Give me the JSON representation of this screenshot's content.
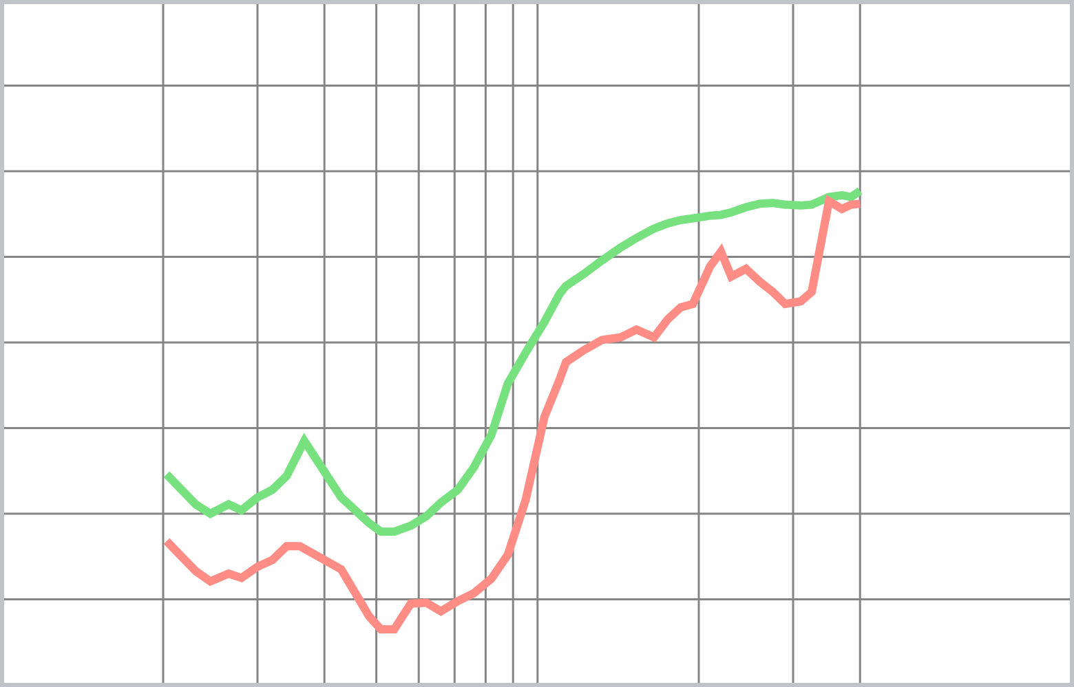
{
  "chart_data": {
    "type": "line",
    "title": "",
    "xlabel": "",
    "ylabel": "",
    "x_scale": "log",
    "grid": true,
    "legend": "none",
    "xlim": [
      1,
      40
    ],
    "ylim": [
      0,
      8
    ],
    "x_gridlines": [
      2,
      3,
      4,
      5,
      6,
      7,
      8,
      9,
      10,
      20,
      30,
      40
    ],
    "y_gridlines": [
      1,
      2,
      3,
      4,
      5,
      6,
      7,
      8
    ],
    "colors": {
      "border": "#c0c4c8",
      "grid": "#858585",
      "series_green": "#77e07f",
      "series_red": "#ff8d85"
    },
    "series": [
      {
        "color": "#77e07f",
        "points": [
          [
            2.03,
            2.46
          ],
          [
            2.3,
            2.11
          ],
          [
            2.45,
            2.0
          ],
          [
            2.65,
            2.11
          ],
          [
            2.8,
            2.04
          ],
          [
            3.0,
            2.19
          ],
          [
            3.2,
            2.28
          ],
          [
            3.4,
            2.44
          ],
          [
            3.67,
            2.85
          ],
          [
            4.3,
            2.19
          ],
          [
            4.85,
            1.89
          ],
          [
            5.1,
            1.79
          ],
          [
            5.4,
            1.79
          ],
          [
            5.8,
            1.86
          ],
          [
            6.2,
            1.97
          ],
          [
            6.6,
            2.13
          ],
          [
            7.1,
            2.28
          ],
          [
            7.6,
            2.54
          ],
          [
            8.2,
            2.92
          ],
          [
            8.8,
            3.52
          ],
          [
            9.5,
            3.88
          ],
          [
            10.3,
            4.24
          ],
          [
            11.0,
            4.57
          ],
          [
            11.3,
            4.66
          ],
          [
            12.2,
            4.8
          ],
          [
            13.2,
            4.96
          ],
          [
            14.3,
            5.11
          ],
          [
            15.3,
            5.22
          ],
          [
            16.5,
            5.33
          ],
          [
            17.5,
            5.39
          ],
          [
            18.5,
            5.43
          ],
          [
            19.5,
            5.45
          ],
          [
            21.0,
            5.48
          ],
          [
            22.0,
            5.49
          ],
          [
            23.0,
            5.52
          ],
          [
            24.5,
            5.58
          ],
          [
            26.0,
            5.62
          ],
          [
            27.5,
            5.63
          ],
          [
            29.0,
            5.61
          ],
          [
            31.0,
            5.6
          ],
          [
            32.5,
            5.61
          ],
          [
            35.0,
            5.7
          ],
          [
            37.0,
            5.72
          ],
          [
            38.5,
            5.7
          ],
          [
            40.0,
            5.77
          ],
          [
            40.0,
            5.77
          ]
        ]
      },
      {
        "color": "#ff8d85",
        "points": [
          [
            2.03,
            1.68
          ],
          [
            2.3,
            1.33
          ],
          [
            2.45,
            1.21
          ],
          [
            2.65,
            1.3
          ],
          [
            2.8,
            1.25
          ],
          [
            3.0,
            1.38
          ],
          [
            3.2,
            1.46
          ],
          [
            3.4,
            1.62
          ],
          [
            3.6,
            1.62
          ],
          [
            4.3,
            1.35
          ],
          [
            4.85,
            0.8
          ],
          [
            5.1,
            0.65
          ],
          [
            5.4,
            0.65
          ],
          [
            5.8,
            0.95
          ],
          [
            6.2,
            0.96
          ],
          [
            6.6,
            0.86
          ],
          [
            7.1,
            0.98
          ],
          [
            7.6,
            1.07
          ],
          [
            8.2,
            1.24
          ],
          [
            8.8,
            1.52
          ],
          [
            9.5,
            2.16
          ],
          [
            10.3,
            3.13
          ],
          [
            11.0,
            3.57
          ],
          [
            11.3,
            3.77
          ],
          [
            12.2,
            3.91
          ],
          [
            13.2,
            4.03
          ],
          [
            14.3,
            4.06
          ],
          [
            15.3,
            4.15
          ],
          [
            16.5,
            4.06
          ],
          [
            17.5,
            4.27
          ],
          [
            18.5,
            4.41
          ],
          [
            19.5,
            4.45
          ],
          [
            21.0,
            4.89
          ],
          [
            22.0,
            5.06
          ],
          [
            23.0,
            4.77
          ],
          [
            24.5,
            4.86
          ],
          [
            26.0,
            4.71
          ],
          [
            27.5,
            4.59
          ],
          [
            29.0,
            4.45
          ],
          [
            31.0,
            4.48
          ],
          [
            32.5,
            4.59
          ],
          [
            35.0,
            5.65
          ],
          [
            37.0,
            5.56
          ],
          [
            38.5,
            5.61
          ],
          [
            40.0,
            5.62
          ]
        ]
      }
    ]
  }
}
